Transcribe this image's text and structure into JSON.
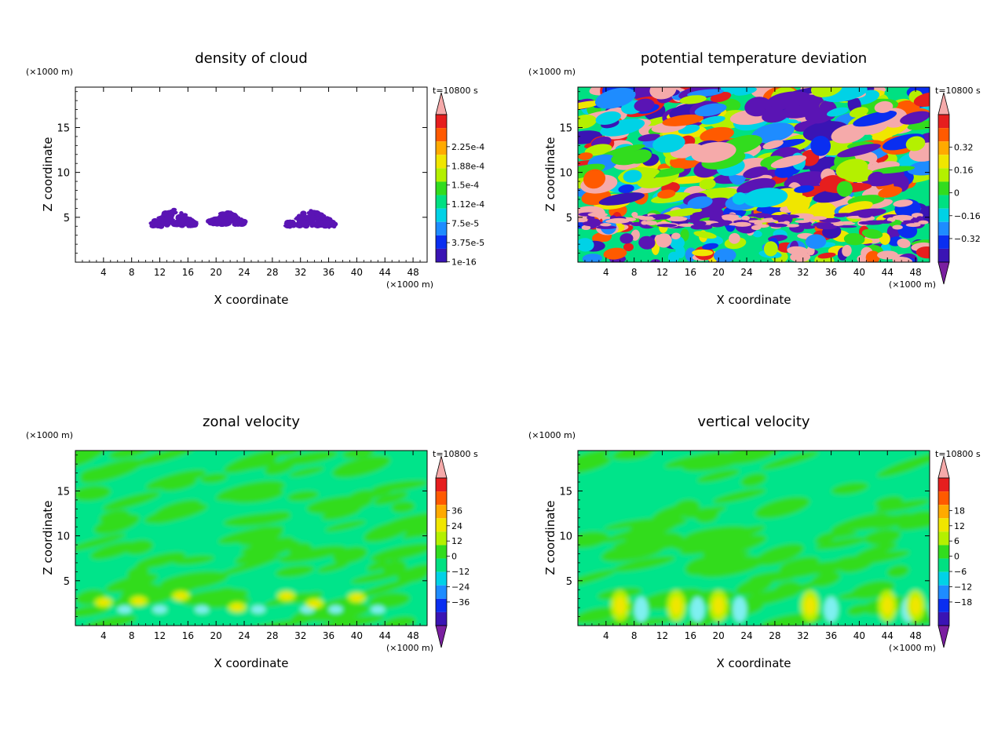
{
  "chart_data": [
    {
      "type": "heatmap",
      "title": "density of cloud",
      "xlabel": "X coordinate",
      "ylabel": "Z coordinate",
      "x_unit": "(×1000 m)",
      "y_unit": "(×1000 m)",
      "time_label": "t=10800 s",
      "xlim": [
        0,
        50
      ],
      "ylim": [
        0,
        19.5
      ],
      "xticks": [
        "4",
        "8",
        "12",
        "16",
        "20",
        "24",
        "28",
        "32",
        "36",
        "40",
        "44",
        "48"
      ],
      "yticks": [
        "5",
        "10",
        "15"
      ],
      "colorbar_labels": [
        "2.25e-4",
        "1.88e-4",
        "1.5e-4",
        "1.12e-4",
        "7.5e-5",
        "3.75e-5",
        "1e-16"
      ],
      "clouds": [
        {
          "x_center": 14,
          "x_halfwidth": 3,
          "z_base": 4,
          "z_top": 6.2
        },
        {
          "x_center": 21.5,
          "x_halfwidth": 2.5,
          "z_base": 4.2,
          "z_top": 5.8
        },
        {
          "x_center": 33.5,
          "x_halfwidth": 3.5,
          "z_base": 4,
          "z_top": 5.9
        }
      ]
    },
    {
      "type": "heatmap",
      "title": "potential temperature deviation",
      "xlabel": "X coordinate",
      "ylabel": "Z coordinate",
      "x_unit": "(×1000 m)",
      "y_unit": "(×1000 m)",
      "time_label": "t=10800 s",
      "xlim": [
        0,
        50
      ],
      "ylim": [
        0,
        19.5
      ],
      "xticks": [
        "4",
        "8",
        "12",
        "16",
        "20",
        "24",
        "28",
        "32",
        "36",
        "40",
        "44",
        "48"
      ],
      "yticks": [
        "5",
        "10",
        "15"
      ],
      "colorbar_labels": [
        "0.32",
        "0.16",
        "0",
        "−0.16",
        "−0.32"
      ]
    },
    {
      "type": "heatmap",
      "title": "zonal velocity",
      "xlabel": "X coordinate",
      "ylabel": "Z coordinate",
      "x_unit": "(×1000 m)",
      "y_unit": "(×1000 m)",
      "time_label": "t=10800 s",
      "xlim": [
        0,
        50
      ],
      "ylim": [
        0,
        19.5
      ],
      "xticks": [
        "4",
        "8",
        "12",
        "16",
        "20",
        "24",
        "28",
        "32",
        "36",
        "40",
        "44",
        "48"
      ],
      "yticks": [
        "5",
        "10",
        "15"
      ],
      "colorbar_labels": [
        "36",
        "24",
        "12",
        "0",
        "−12",
        "−24",
        "−36"
      ]
    },
    {
      "type": "heatmap",
      "title": "vertical velocity",
      "xlabel": "X coordinate",
      "ylabel": "Z coordinate",
      "x_unit": "(×1000 m)",
      "y_unit": "(×1000 m)",
      "time_label": "t=10800 s",
      "xlim": [
        0,
        50
      ],
      "ylim": [
        0,
        19.5
      ],
      "xticks": [
        "4",
        "8",
        "12",
        "16",
        "20",
        "24",
        "28",
        "32",
        "36",
        "40",
        "44",
        "48"
      ],
      "yticks": [
        "5",
        "10",
        "15"
      ],
      "colorbar_labels": [
        "18",
        "12",
        "6",
        "0",
        "−6",
        "−12",
        "−18"
      ]
    }
  ],
  "colors": {
    "colorbar": [
      "#7a1fa0",
      "#3a14b4",
      "#0a2ef0",
      "#1e8cff",
      "#00d2e6",
      "#00e082",
      "#32dc1e",
      "#b4f000",
      "#f0e600",
      "#ffaa00",
      "#ff5a00",
      "#e61e1e",
      "#f5aaaa"
    ],
    "cloud": "#5a14b4",
    "axis": "#000000"
  }
}
